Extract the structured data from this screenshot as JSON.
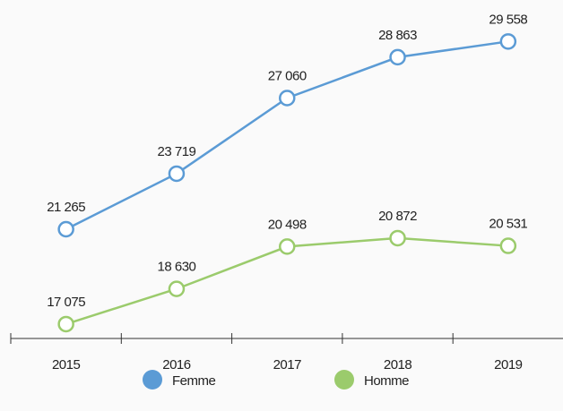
{
  "chart_data": {
    "type": "line",
    "categories": [
      "2015",
      "2016",
      "2017",
      "2018",
      "2019"
    ],
    "series": [
      {
        "name": "Femme",
        "color": "#5b9bd5",
        "values": [
          21265,
          23719,
          27060,
          28863,
          29558
        ],
        "value_labels": [
          "21 265",
          "23 719",
          "27 060",
          "28 863",
          "29 558"
        ]
      },
      {
        "name": "Homme",
        "color": "#9bcb6c",
        "values": [
          17075,
          18630,
          20498,
          20872,
          20531
        ],
        "value_labels": [
          "17 075",
          "18 630",
          "20 498",
          "20 872",
          "20 531"
        ]
      }
    ],
    "ylim": [
      16440,
      31390
    ]
  }
}
